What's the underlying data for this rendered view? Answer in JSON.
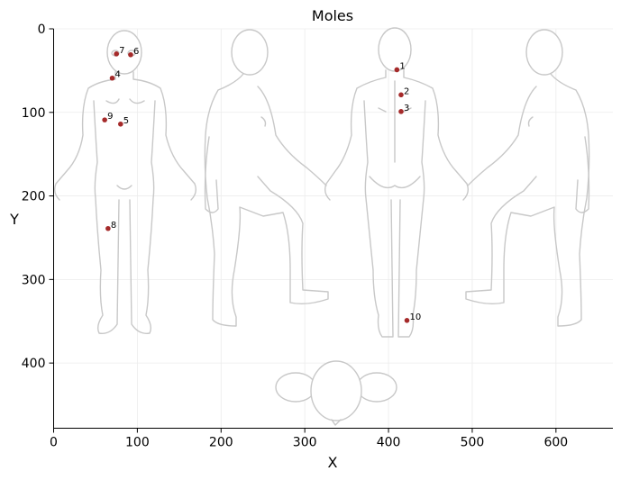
{
  "chart_data": {
    "type": "scatter",
    "title": "Moles",
    "xlabel": "X",
    "ylabel": "Y",
    "xlim": [
      0,
      668
    ],
    "ylim": [
      478,
      0
    ],
    "y_inverted": true,
    "x_ticks": [
      0,
      100,
      200,
      300,
      400,
      500,
      600
    ],
    "y_ticks": [
      0,
      100,
      200,
      300,
      400
    ],
    "grid": true,
    "point_color": "#a52a2a",
    "background": "body-diagram-front-side-back-top",
    "points": [
      {
        "label": "1",
        "x": 410,
        "y": 49
      },
      {
        "label": "2",
        "x": 415,
        "y": 79
      },
      {
        "label": "3",
        "x": 415,
        "y": 99
      },
      {
        "label": "4",
        "x": 70,
        "y": 59
      },
      {
        "label": "5",
        "x": 80,
        "y": 114
      },
      {
        "label": "6",
        "x": 92,
        "y": 31
      },
      {
        "label": "7",
        "x": 75,
        "y": 30
      },
      {
        "label": "8",
        "x": 65,
        "y": 239
      },
      {
        "label": "9",
        "x": 61,
        "y": 109
      },
      {
        "label": "10",
        "x": 422,
        "y": 349
      }
    ]
  }
}
